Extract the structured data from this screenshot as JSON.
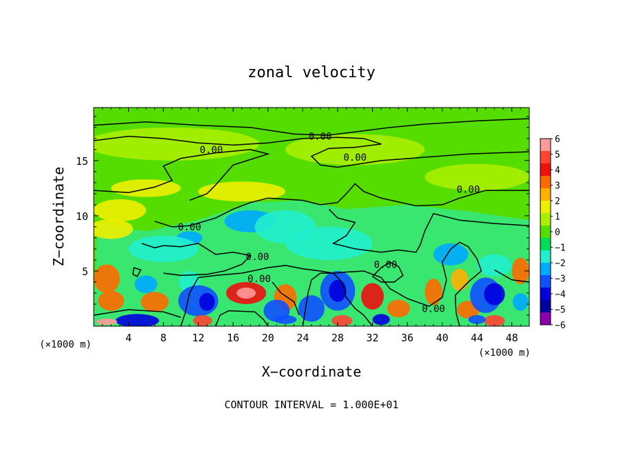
{
  "chart_data": {
    "type": "heatmap",
    "title": "zonal velocity",
    "xlabel": "X−coordinate",
    "ylabel": "Z−coordinate",
    "x_unit": "(×1000 m)",
    "y_unit": "(×1000 m)",
    "xlim": [
      0,
      50
    ],
    "ylim": [
      0,
      19.8
    ],
    "x_ticks": [
      4,
      8,
      12,
      16,
      20,
      24,
      28,
      32,
      36,
      40,
      44,
      48
    ],
    "y_ticks": [
      5,
      10,
      15
    ],
    "colorbar": {
      "ticks": [
        "6",
        "5",
        "4",
        "3",
        "2",
        "1",
        "0",
        "−1",
        "−2",
        "−3",
        "−4",
        "−5",
        "−6"
      ],
      "colors": [
        "#ff9999",
        "#ff4433",
        "#ee1010",
        "#ff6a00",
        "#ffb000",
        "#eeee00",
        "#aaee00",
        "#55dd00",
        "#00dd55",
        "#22eecc",
        "#00aaff",
        "#1050ff",
        "#0000dd",
        "#0000a0",
        "#8a00aa"
      ]
    },
    "contour_label": "0.00",
    "footer": "CONTOUR INTERVAL = 1.000E+01",
    "grid": false
  }
}
